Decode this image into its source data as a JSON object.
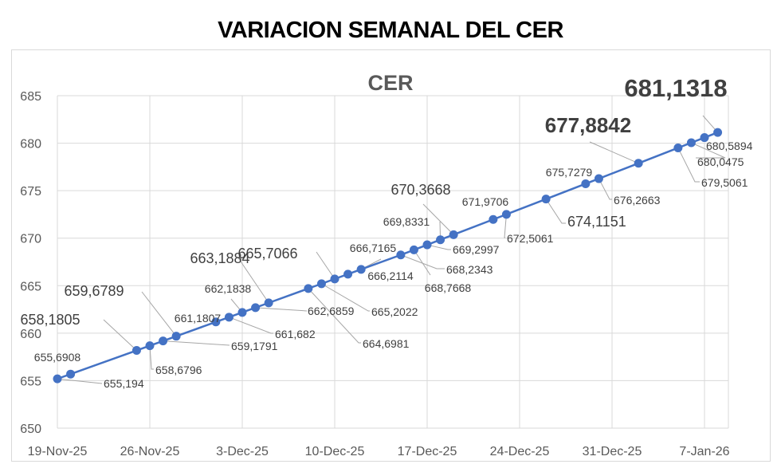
{
  "page_title": "VARIACION SEMANAL DEL CER",
  "chart_data": {
    "type": "line",
    "title": "CER",
    "xlabel": "",
    "ylabel": "",
    "ylim": [
      650,
      685
    ],
    "yticks": [
      "650",
      "655",
      "660",
      "665",
      "670",
      "675",
      "680",
      "685"
    ],
    "xticks": [
      "19-Nov-25",
      "26-Nov-25",
      "3-Dec-25",
      "10-Dec-25",
      "17-Dec-25",
      "24-Dec-25",
      "31-Dec-25",
      "7-Jan-26"
    ],
    "grid": true,
    "series_color": "#4472C4",
    "series": [
      {
        "x": [
          "2025-11-19",
          "2025-11-20",
          "2025-11-25",
          "2025-11-26",
          "2025-11-27",
          "2025-11-28",
          "2025-12-01",
          "2025-12-02",
          "2025-12-03",
          "2025-12-04",
          "2025-12-05",
          "2025-12-08",
          "2025-12-09",
          "2025-12-10",
          "2025-12-11",
          "2025-12-12",
          "2025-12-15",
          "2025-12-16",
          "2025-12-17",
          "2025-12-18",
          "2025-12-19",
          "2025-12-22",
          "2025-12-23",
          "2025-12-26",
          "2025-12-29",
          "2025-12-30",
          "2026-01-02",
          "2026-01-05",
          "2026-01-06",
          "2026-01-07",
          "2026-01-08"
        ],
        "values": [
          655.194,
          655.6908,
          658.1805,
          658.6796,
          659.1791,
          659.6789,
          661.1807,
          661.682,
          662.1838,
          662.6859,
          663.1884,
          664.6981,
          665.2022,
          665.7066,
          666.2114,
          666.7165,
          668.2343,
          668.7668,
          669.2997,
          669.8331,
          670.3668,
          671.9706,
          672.5061,
          674.1151,
          675.7279,
          676.2663,
          677.8842,
          679.5061,
          680.0475,
          680.5894,
          681.1318
        ],
        "labels": [
          "655,194",
          "655,6908",
          "658,1805",
          "658,6796",
          "659,1791",
          "659,6789",
          "661,1807",
          "661,682",
          "662,1838",
          "662,6859",
          "663,1884",
          "664,6981",
          "665,2022",
          "665,7066",
          "666,2114",
          "666,7165",
          "668,2343",
          "668,7668",
          "669,2997",
          "669,8331",
          "670,3668",
          "671,9706",
          "672,5061",
          "674,1151",
          "675,7279",
          "676,2663",
          "677,8842",
          "679,5061",
          "680,0475",
          "680,5894",
          "681,1318"
        ]
      }
    ]
  }
}
